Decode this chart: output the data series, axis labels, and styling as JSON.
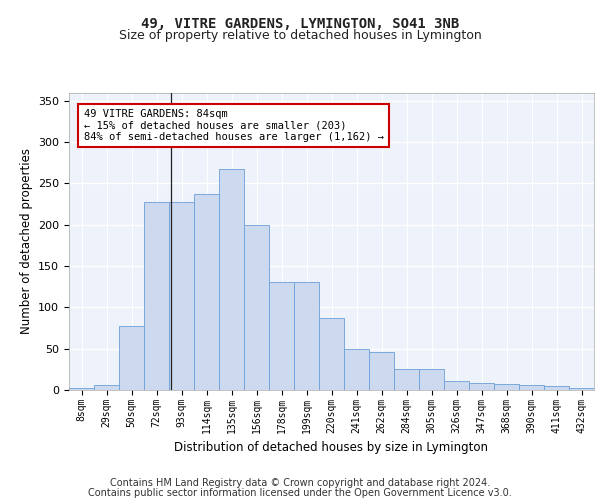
{
  "title": "49, VITRE GARDENS, LYMINGTON, SO41 3NB",
  "subtitle": "Size of property relative to detached houses in Lymington",
  "xlabel": "Distribution of detached houses by size in Lymington",
  "ylabel": "Number of detached properties",
  "bar_color": "#ccd9ee",
  "bar_edge_color": "#6a9fd8",
  "background_color": "#eef2fb",
  "grid_color": "#ffffff",
  "annotation_text": "49 VITRE GARDENS: 84sqm\n← 15% of detached houses are smaller (203)\n84% of semi-detached houses are larger (1,162) →",
  "annotation_box_facecolor": "#ffffff",
  "annotation_box_edgecolor": "#cc0000",
  "categories": [
    "8sqm",
    "29sqm",
    "50sqm",
    "72sqm",
    "93sqm",
    "114sqm",
    "135sqm",
    "156sqm",
    "178sqm",
    "199sqm",
    "220sqm",
    "241sqm",
    "262sqm",
    "284sqm",
    "305sqm",
    "326sqm",
    "347sqm",
    "368sqm",
    "390sqm",
    "411sqm",
    "432sqm"
  ],
  "values": [
    2,
    6,
    78,
    228,
    228,
    237,
    267,
    200,
    131,
    131,
    87,
    50,
    46,
    25,
    25,
    11,
    8,
    7,
    6,
    5,
    3
  ],
  "ylim": [
    0,
    360
  ],
  "yticks": [
    0,
    50,
    100,
    150,
    200,
    250,
    300,
    350
  ],
  "footer_line1": "Contains HM Land Registry data © Crown copyright and database right 2024.",
  "footer_line2": "Contains public sector information licensed under the Open Government Licence v3.0."
}
